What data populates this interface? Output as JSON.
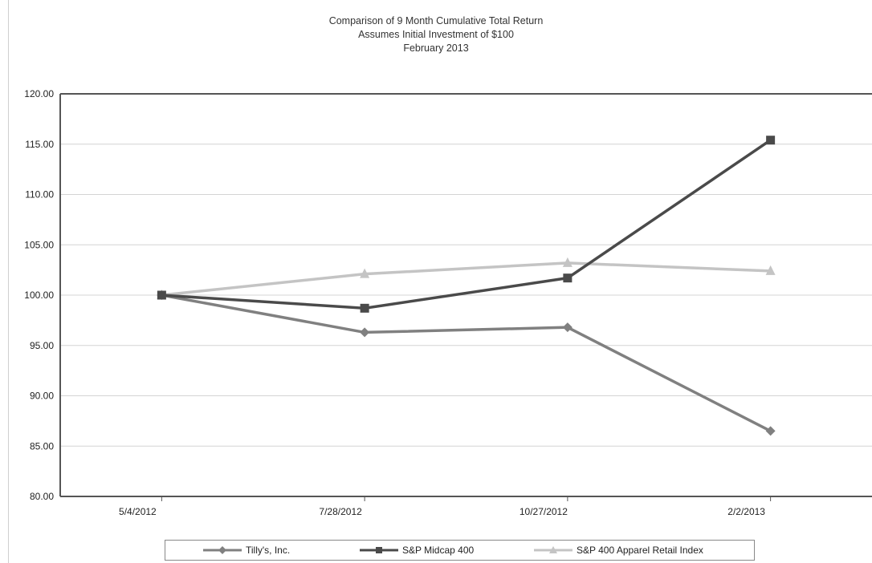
{
  "chart_data": {
    "type": "line",
    "title": "Comparison of 9 Month Cumulative Total Return",
    "subtitle": "Assumes Initial Investment of $100",
    "subtitle2": "February 2013",
    "xlabel": "",
    "ylabel": "",
    "categories": [
      "5/4/2012",
      "7/28/2012",
      "10/27/2012",
      "2/2/2013"
    ],
    "ylim": [
      80,
      120
    ],
    "yticks": [
      "80.00",
      "85.00",
      "90.00",
      "95.00",
      "100.00",
      "105.00",
      "110.00",
      "115.00",
      "120.00"
    ],
    "grid": true,
    "legend_position": "bottom",
    "series": [
      {
        "name": "Tilly's, Inc.",
        "values": [
          100,
          96.3,
          96.8,
          86.5
        ],
        "color": "#808080",
        "marker": "diamond"
      },
      {
        "name": "S&P Midcap 400",
        "values": [
          100,
          98.7,
          101.7,
          115.4
        ],
        "color": "#4a4a4a",
        "marker": "square"
      },
      {
        "name": "S&P 400 Apparel Retail Index",
        "values": [
          100,
          102.1,
          103.2,
          102.4
        ],
        "color": "#c4c4c4",
        "marker": "triangle"
      }
    ]
  }
}
